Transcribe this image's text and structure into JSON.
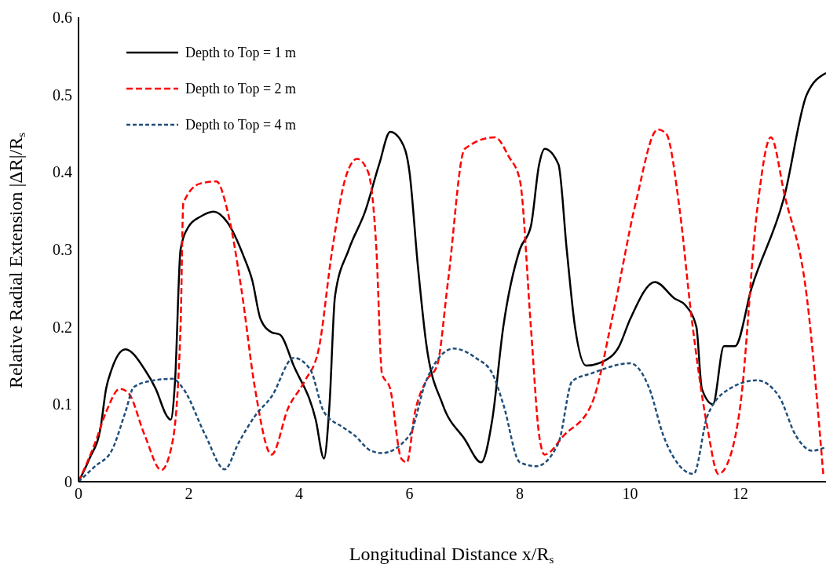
{
  "chart_data": {
    "type": "line",
    "xlabel": "Longitudinal Distance x/R$_{s}$",
    "ylabel": "Relative Radial Extension |ΔR|/R$_{s}$",
    "xlim": [
      0,
      13.55
    ],
    "xticks": [
      0,
      2,
      4,
      6,
      8,
      10,
      12
    ],
    "ylim": [
      0,
      0.6
    ],
    "yticks": [
      0,
      0.1,
      0.2,
      0.3,
      0.4,
      0.5,
      0.6
    ],
    "grid": false,
    "legend": "top left",
    "marker": "none",
    "series": [
      {
        "name": "Depth to Top = 1 m",
        "color": "#000000",
        "line_style": "solid",
        "x": [
          0,
          0.2,
          0.4,
          0.5,
          0.6,
          0.85,
          1.2,
          1.4,
          1.6,
          1.67,
          1.75,
          1.85,
          2.0,
          2.2,
          2.45,
          2.7,
          3.0,
          3.15,
          3.3,
          3.5,
          3.65,
          3.9,
          4.3,
          4.45,
          4.55,
          4.65,
          4.9,
          5.2,
          5.45,
          5.65,
          5.85,
          6.0,
          6.15,
          6.3,
          6.6,
          7.0,
          7.3,
          7.5,
          7.7,
          8.0,
          8.2,
          8.35,
          8.45,
          8.7,
          8.85,
          9.0,
          9.2,
          9.5,
          9.8,
          10.0,
          10.45,
          10.8,
          11.0,
          11.2,
          11.3,
          11.5,
          11.7,
          11.9,
          12.2,
          12.8,
          13.2,
          13.55
        ],
        "values": [
          0,
          0.03,
          0.07,
          0.12,
          0.145,
          0.171,
          0.145,
          0.12,
          0.085,
          0.08,
          0.13,
          0.3,
          0.33,
          0.342,
          0.349,
          0.335,
          0.29,
          0.26,
          0.21,
          0.193,
          0.19,
          0.15,
          0.08,
          0.03,
          0.1,
          0.24,
          0.3,
          0.35,
          0.41,
          0.452,
          0.44,
          0.4,
          0.28,
          0.18,
          0.1,
          0.055,
          0.025,
          0.08,
          0.2,
          0.3,
          0.33,
          0.41,
          0.43,
          0.41,
          0.3,
          0.2,
          0.15,
          0.155,
          0.175,
          0.21,
          0.258,
          0.237,
          0.228,
          0.2,
          0.12,
          0.1,
          0.175,
          0.175,
          0.25,
          0.37,
          0.5,
          0.528
        ]
      },
      {
        "name": "Depth to Top = 2 m",
        "color": "#ff0000",
        "line_style": "dashed",
        "x": [
          0,
          0.3,
          0.5,
          0.75,
          0.9,
          1.2,
          1.5,
          1.7,
          1.85,
          1.9,
          2.2,
          2.5,
          2.7,
          2.95,
          3.2,
          3.5,
          3.8,
          4.1,
          4.35,
          4.6,
          4.85,
          5.05,
          5.25,
          5.4,
          5.5,
          5.65,
          5.85,
          5.95,
          6.1,
          6.3,
          6.5,
          6.7,
          7.0,
          7.55,
          7.8,
          8.0,
          8.2,
          8.35,
          8.45,
          8.8,
          9.3,
          9.7,
          10.1,
          10.5,
          10.65,
          10.9,
          11.1,
          11.4,
          11.6,
          11.8,
          12.0,
          12.3,
          12.55,
          12.8,
          13.2,
          13.5
        ],
        "values": [
          0,
          0.05,
          0.09,
          0.12,
          0.115,
          0.06,
          0.015,
          0.05,
          0.2,
          0.36,
          0.385,
          0.388,
          0.35,
          0.25,
          0.12,
          0.035,
          0.095,
          0.13,
          0.17,
          0.3,
          0.395,
          0.417,
          0.4,
          0.3,
          0.14,
          0.12,
          0.03,
          0.025,
          0.09,
          0.13,
          0.15,
          0.26,
          0.43,
          0.445,
          0.42,
          0.39,
          0.2,
          0.06,
          0.035,
          0.06,
          0.1,
          0.22,
          0.36,
          0.455,
          0.45,
          0.35,
          0.22,
          0.07,
          0.01,
          0.03,
          0.1,
          0.35,
          0.445,
          0.37,
          0.24,
          0.01
        ]
      },
      {
        "name": "Depth to Top = 4 m",
        "color": "#1f4e79",
        "line_style": "dotted",
        "x": [
          0,
          0.3,
          0.6,
          0.85,
          1.0,
          1.3,
          1.7,
          1.9,
          2.3,
          2.65,
          2.9,
          3.2,
          3.5,
          3.9,
          4.2,
          4.45,
          4.8,
          5.0,
          5.3,
          5.5,
          6.0,
          6.3,
          6.8,
          7.2,
          7.5,
          7.7,
          8.0,
          8.3,
          8.7,
          8.95,
          9.3,
          10.0,
          10.35,
          10.6,
          10.8,
          11.15,
          11.4,
          11.8,
          12.3,
          12.7,
          13.0,
          13.3,
          13.55
        ],
        "values": [
          0,
          0.02,
          0.04,
          0.09,
          0.122,
          0.13,
          0.133,
          0.12,
          0.06,
          0.016,
          0.05,
          0.085,
          0.11,
          0.16,
          0.145,
          0.09,
          0.07,
          0.06,
          0.04,
          0.037,
          0.06,
          0.13,
          0.172,
          0.16,
          0.14,
          0.1,
          0.025,
          0.02,
          0.05,
          0.13,
          0.14,
          0.153,
          0.12,
          0.06,
          0.03,
          0.01,
          0.085,
          0.12,
          0.131,
          0.11,
          0.06,
          0.04,
          0.045
        ]
      }
    ]
  }
}
